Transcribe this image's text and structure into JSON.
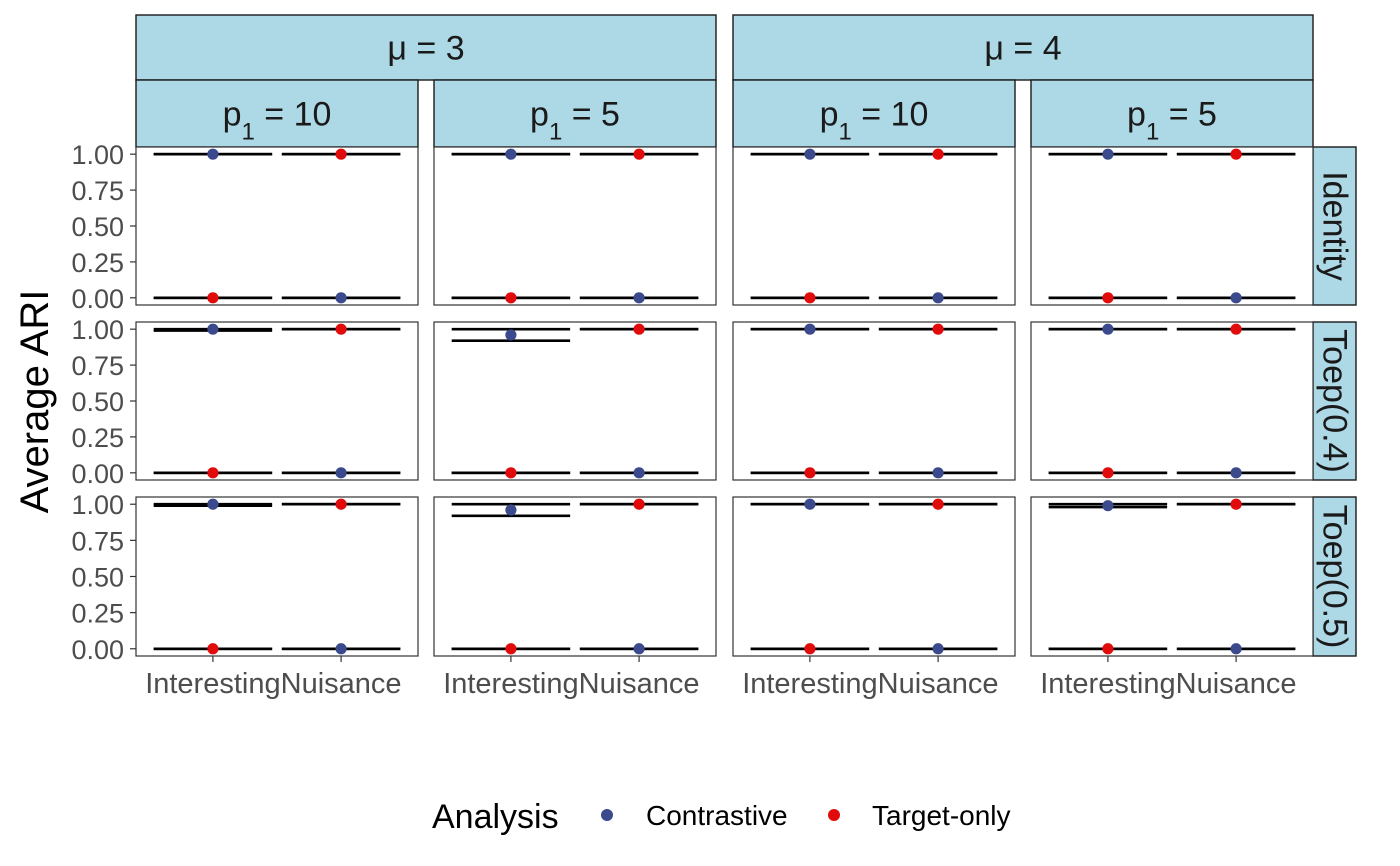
{
  "chart_data": {
    "type": "scatter",
    "ylabel": "Average ARI",
    "xlabel": "",
    "categories": [
      "Interesting",
      "Nuisance"
    ],
    "ylim": [
      -0.05,
      1.05
    ],
    "yticks": [
      "0.00",
      "0.25",
      "0.50",
      "0.75",
      "1.00"
    ],
    "grid": false,
    "legend": {
      "title": "Analysis",
      "position": "bottom",
      "items": [
        {
          "name": "Contrastive",
          "color": "#3b4a8c"
        },
        {
          "name": "Target-only",
          "color": "#e10b0b"
        }
      ]
    },
    "facet_top": [
      "μ = 3",
      "μ = 4"
    ],
    "facet_cols": [
      {
        "label": "p1 = 10",
        "sym": "p",
        "sub": "1",
        "val": " = 10",
        "group": 0
      },
      {
        "label": "p1 = 5",
        "sym": "p",
        "sub": "1",
        "val": " = 5",
        "group": 0
      },
      {
        "label": "p1 = 10",
        "sym": "p",
        "sub": "1",
        "val": " = 10",
        "group": 1
      },
      {
        "label": "p1 = 5",
        "sym": "p",
        "sub": "1",
        "val": " = 5",
        "group": 1
      }
    ],
    "facet_rows": [
      "Identity",
      "Toep(0.4)",
      "Toep(0.5)"
    ],
    "panels": [
      {
        "row": 0,
        "col": 0,
        "points": [
          {
            "cat": "Interesting",
            "series": "Contrastive",
            "y": 1.0
          },
          {
            "cat": "Interesting",
            "series": "Target-only",
            "y": 0.0
          },
          {
            "cat": "Nuisance",
            "series": "Contrastive",
            "y": 0.0
          },
          {
            "cat": "Nuisance",
            "series": "Target-only",
            "y": 1.0
          }
        ]
      },
      {
        "row": 0,
        "col": 1,
        "points": [
          {
            "cat": "Interesting",
            "series": "Contrastive",
            "y": 1.0
          },
          {
            "cat": "Interesting",
            "series": "Target-only",
            "y": 0.0
          },
          {
            "cat": "Nuisance",
            "series": "Contrastive",
            "y": 0.0
          },
          {
            "cat": "Nuisance",
            "series": "Target-only",
            "y": 1.0
          }
        ]
      },
      {
        "row": 0,
        "col": 2,
        "points": [
          {
            "cat": "Interesting",
            "series": "Contrastive",
            "y": 1.0
          },
          {
            "cat": "Interesting",
            "series": "Target-only",
            "y": 0.0
          },
          {
            "cat": "Nuisance",
            "series": "Contrastive",
            "y": 0.0
          },
          {
            "cat": "Nuisance",
            "series": "Target-only",
            "y": 1.0
          }
        ]
      },
      {
        "row": 0,
        "col": 3,
        "points": [
          {
            "cat": "Interesting",
            "series": "Contrastive",
            "y": 1.0
          },
          {
            "cat": "Interesting",
            "series": "Target-only",
            "y": 0.0
          },
          {
            "cat": "Nuisance",
            "series": "Contrastive",
            "y": 0.0
          },
          {
            "cat": "Nuisance",
            "series": "Target-only",
            "y": 1.0
          }
        ]
      },
      {
        "row": 1,
        "col": 0,
        "points": [
          {
            "cat": "Interesting",
            "series": "Contrastive",
            "y": 1.0,
            "lo": 0.99,
            "hi": 1.0
          },
          {
            "cat": "Interesting",
            "series": "Target-only",
            "y": 0.0
          },
          {
            "cat": "Nuisance",
            "series": "Contrastive",
            "y": 0.0
          },
          {
            "cat": "Nuisance",
            "series": "Target-only",
            "y": 1.0
          }
        ]
      },
      {
        "row": 1,
        "col": 1,
        "points": [
          {
            "cat": "Interesting",
            "series": "Contrastive",
            "y": 0.96,
            "lo": 0.92,
            "hi": 1.0
          },
          {
            "cat": "Interesting",
            "series": "Target-only",
            "y": 0.0
          },
          {
            "cat": "Nuisance",
            "series": "Contrastive",
            "y": 0.0
          },
          {
            "cat": "Nuisance",
            "series": "Target-only",
            "y": 1.0
          }
        ]
      },
      {
        "row": 1,
        "col": 2,
        "points": [
          {
            "cat": "Interesting",
            "series": "Contrastive",
            "y": 1.0
          },
          {
            "cat": "Interesting",
            "series": "Target-only",
            "y": 0.0
          },
          {
            "cat": "Nuisance",
            "series": "Contrastive",
            "y": 0.0
          },
          {
            "cat": "Nuisance",
            "series": "Target-only",
            "y": 1.0
          }
        ]
      },
      {
        "row": 1,
        "col": 3,
        "points": [
          {
            "cat": "Interesting",
            "series": "Contrastive",
            "y": 1.0
          },
          {
            "cat": "Interesting",
            "series": "Target-only",
            "y": 0.0
          },
          {
            "cat": "Nuisance",
            "series": "Contrastive",
            "y": 0.0
          },
          {
            "cat": "Nuisance",
            "series": "Target-only",
            "y": 1.0
          }
        ]
      },
      {
        "row": 2,
        "col": 0,
        "points": [
          {
            "cat": "Interesting",
            "series": "Contrastive",
            "y": 1.0,
            "lo": 0.99,
            "hi": 1.0
          },
          {
            "cat": "Interesting",
            "series": "Target-only",
            "y": 0.0
          },
          {
            "cat": "Nuisance",
            "series": "Contrastive",
            "y": 0.0
          },
          {
            "cat": "Nuisance",
            "series": "Target-only",
            "y": 1.0
          }
        ]
      },
      {
        "row": 2,
        "col": 1,
        "points": [
          {
            "cat": "Interesting",
            "series": "Contrastive",
            "y": 0.96,
            "lo": 0.92,
            "hi": 1.0
          },
          {
            "cat": "Interesting",
            "series": "Target-only",
            "y": 0.0
          },
          {
            "cat": "Nuisance",
            "series": "Contrastive",
            "y": 0.0
          },
          {
            "cat": "Nuisance",
            "series": "Target-only",
            "y": 1.0
          }
        ]
      },
      {
        "row": 2,
        "col": 2,
        "points": [
          {
            "cat": "Interesting",
            "series": "Contrastive",
            "y": 1.0
          },
          {
            "cat": "Interesting",
            "series": "Target-only",
            "y": 0.0
          },
          {
            "cat": "Nuisance",
            "series": "Contrastive",
            "y": 0.0
          },
          {
            "cat": "Nuisance",
            "series": "Target-only",
            "y": 1.0
          }
        ]
      },
      {
        "row": 2,
        "col": 3,
        "points": [
          {
            "cat": "Interesting",
            "series": "Contrastive",
            "y": 0.99,
            "lo": 0.98,
            "hi": 1.0
          },
          {
            "cat": "Interesting",
            "series": "Target-only",
            "y": 0.0
          },
          {
            "cat": "Nuisance",
            "series": "Contrastive",
            "y": 0.0
          },
          {
            "cat": "Nuisance",
            "series": "Target-only",
            "y": 1.0
          }
        ]
      }
    ],
    "colors": {
      "strip_fill": "#add8e6",
      "strip_border": "#1a1a1a",
      "panel_border": "#333333",
      "error_bar": "#000000",
      "tick_text": "#4d4d4d"
    }
  }
}
